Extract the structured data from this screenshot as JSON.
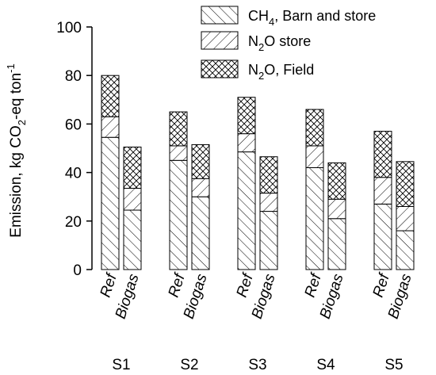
{
  "chart_data": {
    "type": "bar",
    "stacked": true,
    "title": "",
    "xlabel": "",
    "ylabel_parts": [
      "Emission, kg CO",
      "2",
      "-eq ton",
      "-1"
    ],
    "ylim": [
      0,
      100
    ],
    "yticks": [
      0,
      20,
      40,
      60,
      80,
      100
    ],
    "groups": [
      "S1",
      "S2",
      "S3",
      "S4",
      "S5"
    ],
    "bar_labels": [
      "Ref",
      "Biogas"
    ],
    "legend_position": "top-right",
    "series": [
      {
        "key": "ch4",
        "name_parts": [
          "CH",
          "4",
          ", Barn and store"
        ],
        "pattern": "forward-diagonal",
        "values": [
          [
            54.5,
            24.5
          ],
          [
            45,
            30
          ],
          [
            48.5,
            24
          ],
          [
            42,
            21
          ],
          [
            27,
            16
          ]
        ]
      },
      {
        "key": "n2o_store",
        "name_parts": [
          "N",
          "2",
          "O store"
        ],
        "pattern": "backward-diagonal",
        "values": [
          [
            8.5,
            9
          ],
          [
            6,
            7.5
          ],
          [
            7.5,
            7.5
          ],
          [
            9,
            8
          ],
          [
            11,
            10
          ]
        ]
      },
      {
        "key": "n2o_field",
        "name_parts": [
          "N",
          "2",
          "O, Field"
        ],
        "pattern": "crosshatch",
        "values": [
          [
            17,
            17
          ],
          [
            14,
            14
          ],
          [
            15,
            15
          ],
          [
            15,
            15
          ],
          [
            19,
            18.5
          ]
        ]
      }
    ]
  }
}
